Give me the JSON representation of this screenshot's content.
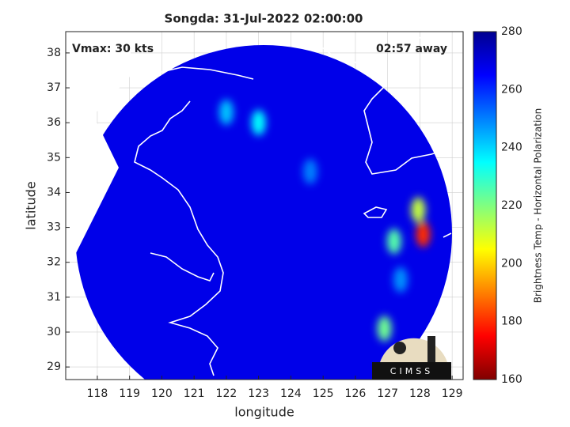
{
  "chart_data": {
    "type": "map",
    "title": "Songda: 31-Jul-2022 02:00:00",
    "xlabel": "longitude",
    "ylabel": "latitude",
    "annotations": [
      "Vmax: 30 kts",
      "02:57 away"
    ],
    "logo": "CIMSS",
    "xlim": [
      117.02,
      129.34
    ],
    "ylim": [
      28.64,
      38.61
    ],
    "xticks": [
      118,
      119,
      120,
      121,
      122,
      123,
      124,
      125,
      126,
      127,
      128,
      129
    ],
    "yticks": [
      29,
      30,
      31,
      32,
      33,
      34,
      35,
      36,
      37,
      38
    ],
    "grid": true,
    "background_value": 268,
    "points": {
      "x": [
        128.1,
        127.95,
        127.2,
        126.9,
        123.0,
        122.0,
        127.4,
        124.6
      ],
      "y": [
        32.8,
        33.5,
        32.6,
        30.1,
        36.0,
        36.3,
        31.5,
        34.6
      ],
      "values": [
        180,
        212,
        225,
        222,
        235,
        242,
        248,
        250
      ]
    },
    "colorbar": {
      "label": "Brightness Temp - Horizontal Polarization",
      "lim": [
        160,
        280
      ],
      "ticks": [
        160,
        180,
        200,
        220,
        240,
        260,
        280
      ],
      "colormap": [
        "#800000",
        "#ff0000",
        "#ff8000",
        "#ffff00",
        "#80ff80",
        "#00ffff",
        "#0080ff",
        "#0000ff",
        "#000090"
      ]
    }
  }
}
